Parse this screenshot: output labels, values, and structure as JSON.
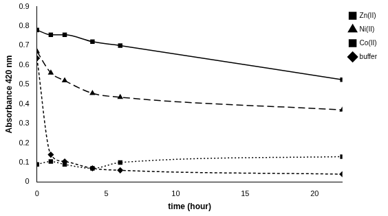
{
  "chart_data": {
    "type": "line",
    "x_label": "time (hour)",
    "y_label": "Absorbance 420 nm",
    "x": [
      0,
      1,
      2,
      4,
      6,
      22
    ],
    "xlim": [
      0,
      22
    ],
    "xticks": [
      0,
      5,
      10,
      15,
      20
    ],
    "ylim": [
      0,
      0.9
    ],
    "yticks": [
      0,
      0.1,
      0.2,
      0.3,
      0.4,
      0.5,
      0.6,
      0.7,
      0.8,
      0.9
    ],
    "grid": false,
    "legend": "top-right",
    "series": [
      {
        "name": "Zn(II)",
        "color": "#000000",
        "marker": "square",
        "line_style": "solid",
        "values": [
          0.78,
          0.755,
          0.755,
          0.72,
          0.7,
          0.525
        ]
      },
      {
        "name": "Ni(II)",
        "color": "#000000",
        "marker": "triangle",
        "line_style": "longdash",
        "values": [
          0.67,
          0.56,
          0.52,
          0.455,
          0.435,
          0.37
        ]
      },
      {
        "name": "Co(II)",
        "color": "#000000",
        "marker": "square",
        "line_style": "dotted",
        "values": [
          0.09,
          0.105,
          0.09,
          0.07,
          0.1,
          0.13
        ]
      },
      {
        "name": "buffer",
        "color": "#000000",
        "marker": "diamond",
        "line_style": "dashed",
        "values": [
          0.635,
          0.14,
          0.105,
          0.07,
          0.06,
          0.04
        ]
      }
    ]
  }
}
